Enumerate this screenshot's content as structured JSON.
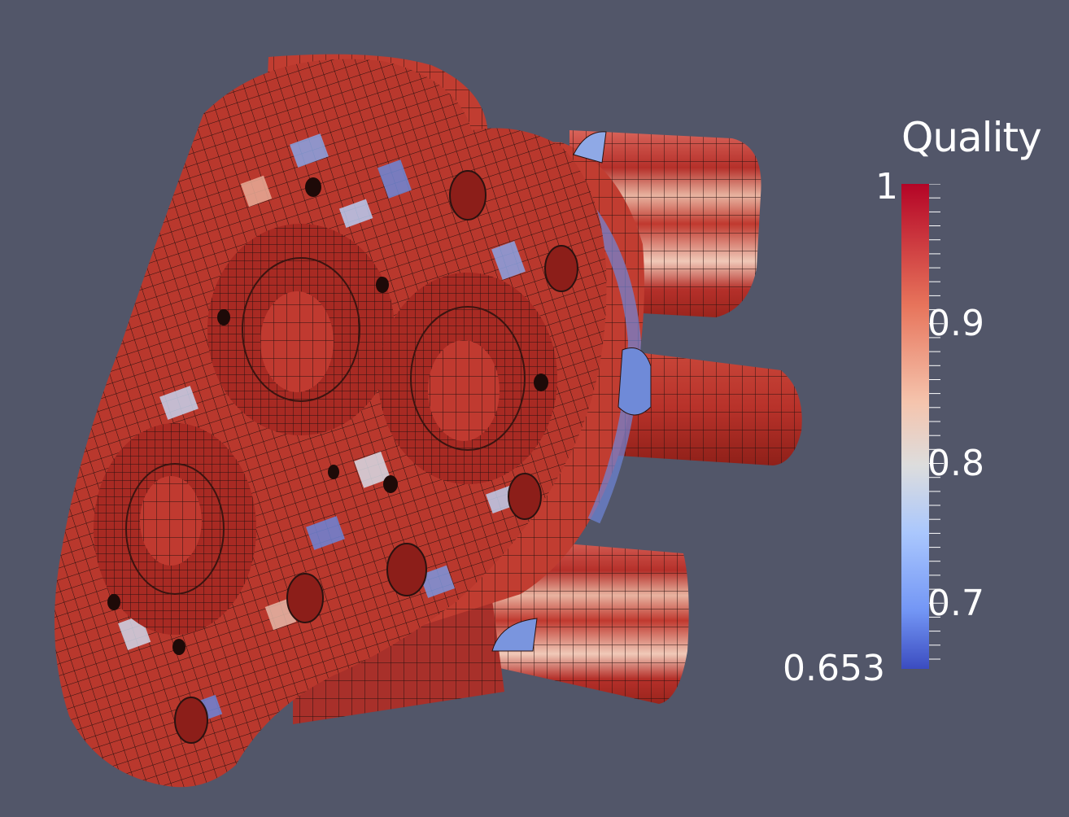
{
  "legend": {
    "title": "Quality",
    "max_label": "1",
    "min_label": "0.653",
    "tick_labels": [
      "0.9",
      "0.8",
      "0.7"
    ],
    "range": [
      0.653,
      1.0
    ],
    "tick_values": [
      0.9,
      0.8,
      0.7
    ],
    "colormap": "cool-to-warm",
    "colors": {
      "low": "#3b4cc0",
      "mid": "#dddddd",
      "high": "#b40426"
    }
  },
  "colors": {
    "background": "#525669",
    "text": "#ffffff"
  }
}
